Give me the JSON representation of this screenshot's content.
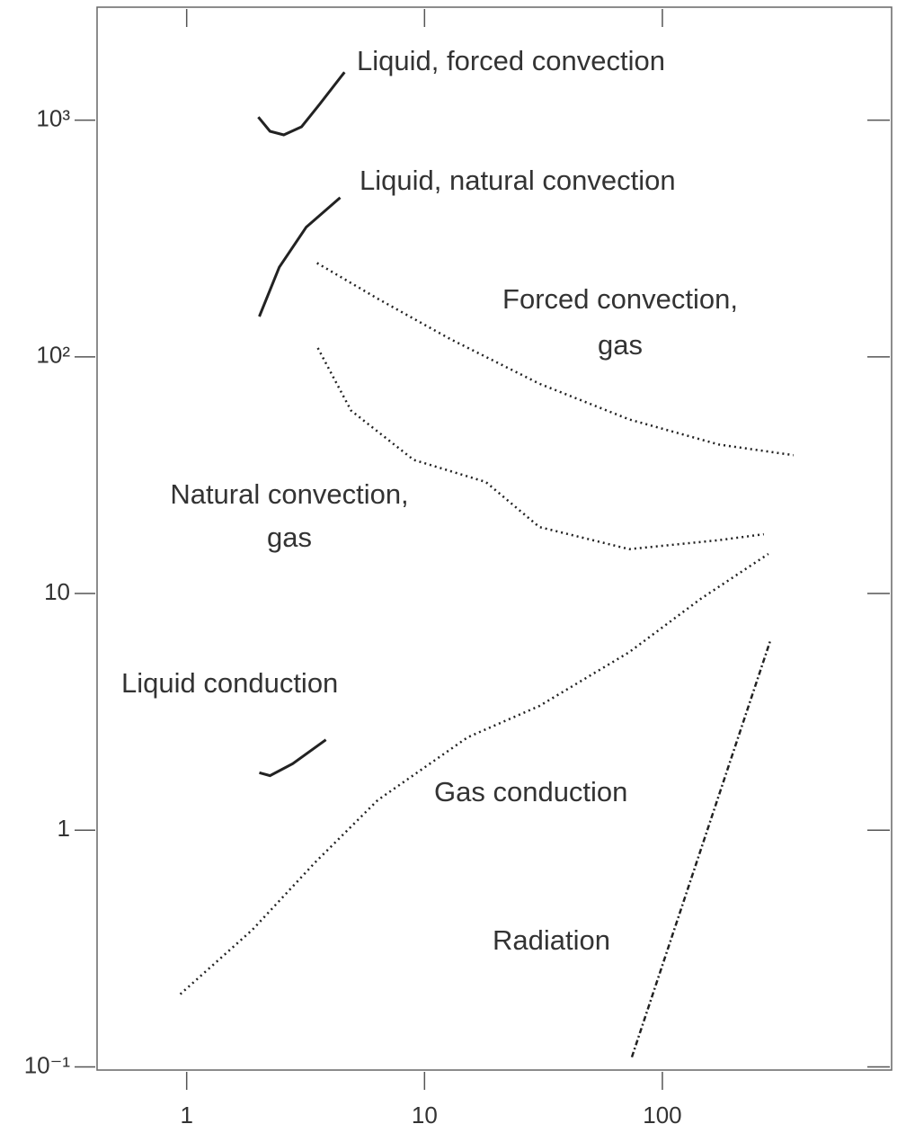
{
  "chart_data": {
    "type": "line",
    "log_x": true,
    "log_y": true,
    "xlim": [
      0.42,
      920
    ],
    "ylim": [
      0.097,
      3000
    ],
    "xticks": [
      1,
      10,
      100
    ],
    "yticks": [
      {
        "value": 0.1,
        "label": "10⁻¹"
      },
      1,
      10,
      {
        "value": 100,
        "label": "10²"
      },
      {
        "value": 1000,
        "label": "10³"
      }
    ],
    "series": [
      {
        "label": [
          "Liquid, forced convection"
        ],
        "style": "solid",
        "color": "#222",
        "x": [
          2.0,
          2.24,
          2.56,
          3.04,
          3.62,
          4.61
        ],
        "values": [
          1030,
          897,
          866,
          937,
          1165,
          1594
        ]
      },
      {
        "label": [
          "Liquid, natural convection"
        ],
        "style": "solid",
        "color": "#222",
        "x": [
          2.02,
          2.45,
          3.18,
          4.42
        ],
        "values": [
          148,
          239,
          353,
          471
        ]
      },
      {
        "label": [
          "Forced convection,",
          "gas"
        ],
        "style": "dotted",
        "color": "#222",
        "x": [
          3.53,
          6.36,
          12.8,
          30.4,
          72.5,
          173,
          356
        ],
        "values": [
          249,
          176,
          119,
          77,
          54.4,
          42.6,
          38.4
        ]
      },
      {
        "label": [
          "Natural convection,",
          "gas"
        ],
        "style": "dotted",
        "color": "#222",
        "x": [
          3.56,
          4.91,
          9.0,
          18.1,
          30.4,
          72.5,
          173,
          267
        ],
        "values": [
          109,
          59.3,
          36.7,
          29.6,
          19.1,
          15.4,
          16.8,
          17.8
        ]
      },
      {
        "label": [
          "Liquid conduction"
        ],
        "style": "solid",
        "color": "#222",
        "x": [
          2.02,
          2.24,
          2.79,
          3.85
        ],
        "values": [
          1.75,
          1.7,
          1.91,
          2.41
        ]
      },
      {
        "label": [
          "Gas conduction"
        ],
        "style": "dotted",
        "color": "#222",
        "x": [
          0.94,
          1.89,
          3.46,
          6.36,
          15.2,
          30.4,
          72.5,
          145,
          279
        ],
        "values": [
          0.203,
          0.38,
          0.73,
          1.34,
          2.47,
          3.35,
          5.65,
          9.5,
          14.7
        ]
      },
      {
        "label": [
          "Radiation"
        ],
        "style": "dashdot",
        "color": "#222",
        "x": [
          74.4,
          284
        ],
        "values": [
          0.11,
          6.3
        ]
      }
    ]
  }
}
